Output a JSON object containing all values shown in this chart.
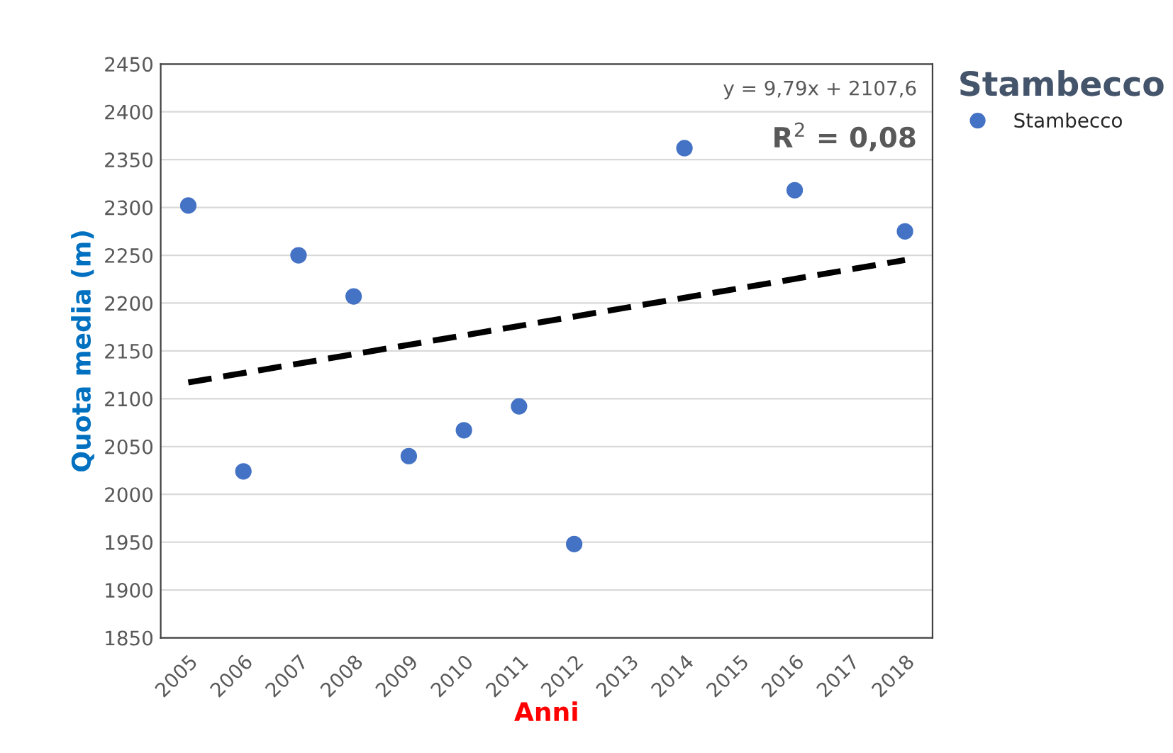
{
  "chart_data": {
    "type": "scatter",
    "xlabel": "Anni",
    "ylabel": "Quota media (m)",
    "legend_title": "Stambecco",
    "categories": [
      "2005",
      "2006",
      "2007",
      "2008",
      "2009",
      "2010",
      "2011",
      "2012",
      "2013",
      "2014",
      "2015",
      "2016",
      "2017",
      "2018"
    ],
    "series": [
      {
        "name": "Stambecco",
        "color": "#4472c4",
        "marker": "circle",
        "values": [
          2302,
          2024,
          2250,
          2207,
          2040,
          2067,
          2092,
          1948,
          null,
          2362,
          null,
          2318,
          null,
          2275
        ]
      },
      {
        "type": "line",
        "color": "#000000",
        "line_style": "dashed",
        "marker": "none",
        "values": [
          2117,
          null,
          null,
          null,
          null,
          null,
          null,
          null,
          null,
          null,
          null,
          null,
          null,
          2245
        ]
      }
    ],
    "ylim": [
      1850,
      2450
    ],
    "yticks": [
      1850,
      1900,
      1950,
      2000,
      2050,
      2100,
      2150,
      2200,
      2250,
      2300,
      2350,
      2400,
      2450
    ],
    "grid": "y",
    "legend": "right",
    "annotations": [
      "y = 9,79x + 2107,6",
      "R$^{2}$ = 0,08"
    ]
  }
}
